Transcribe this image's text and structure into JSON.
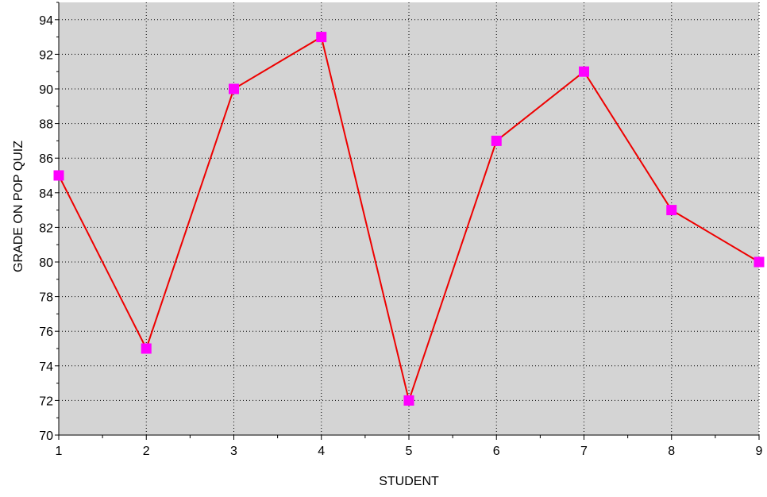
{
  "chart_data": {
    "type": "line",
    "title": "",
    "xlabel": "STUDENT",
    "ylabel": "GRADE ON POP QUIZ",
    "x": [
      1,
      2,
      3,
      4,
      5,
      6,
      7,
      8,
      9
    ],
    "series": [
      {
        "values": [
          85,
          75,
          90,
          93,
          72,
          87,
          91,
          83,
          80
        ]
      }
    ],
    "xlim": [
      1,
      9
    ],
    "ylim": [
      70,
      95
    ],
    "x_ticks": [
      1,
      2,
      3,
      4,
      5,
      6,
      7,
      8,
      9
    ],
    "y_ticks": [
      70,
      72,
      74,
      76,
      78,
      80,
      82,
      84,
      86,
      88,
      90,
      92,
      94
    ],
    "grid": true,
    "legend": "none",
    "colors": {
      "plot_background": "#d4d4d4",
      "line": "#ee0000",
      "marker": "#ff00ff",
      "grid": "#000000"
    }
  }
}
